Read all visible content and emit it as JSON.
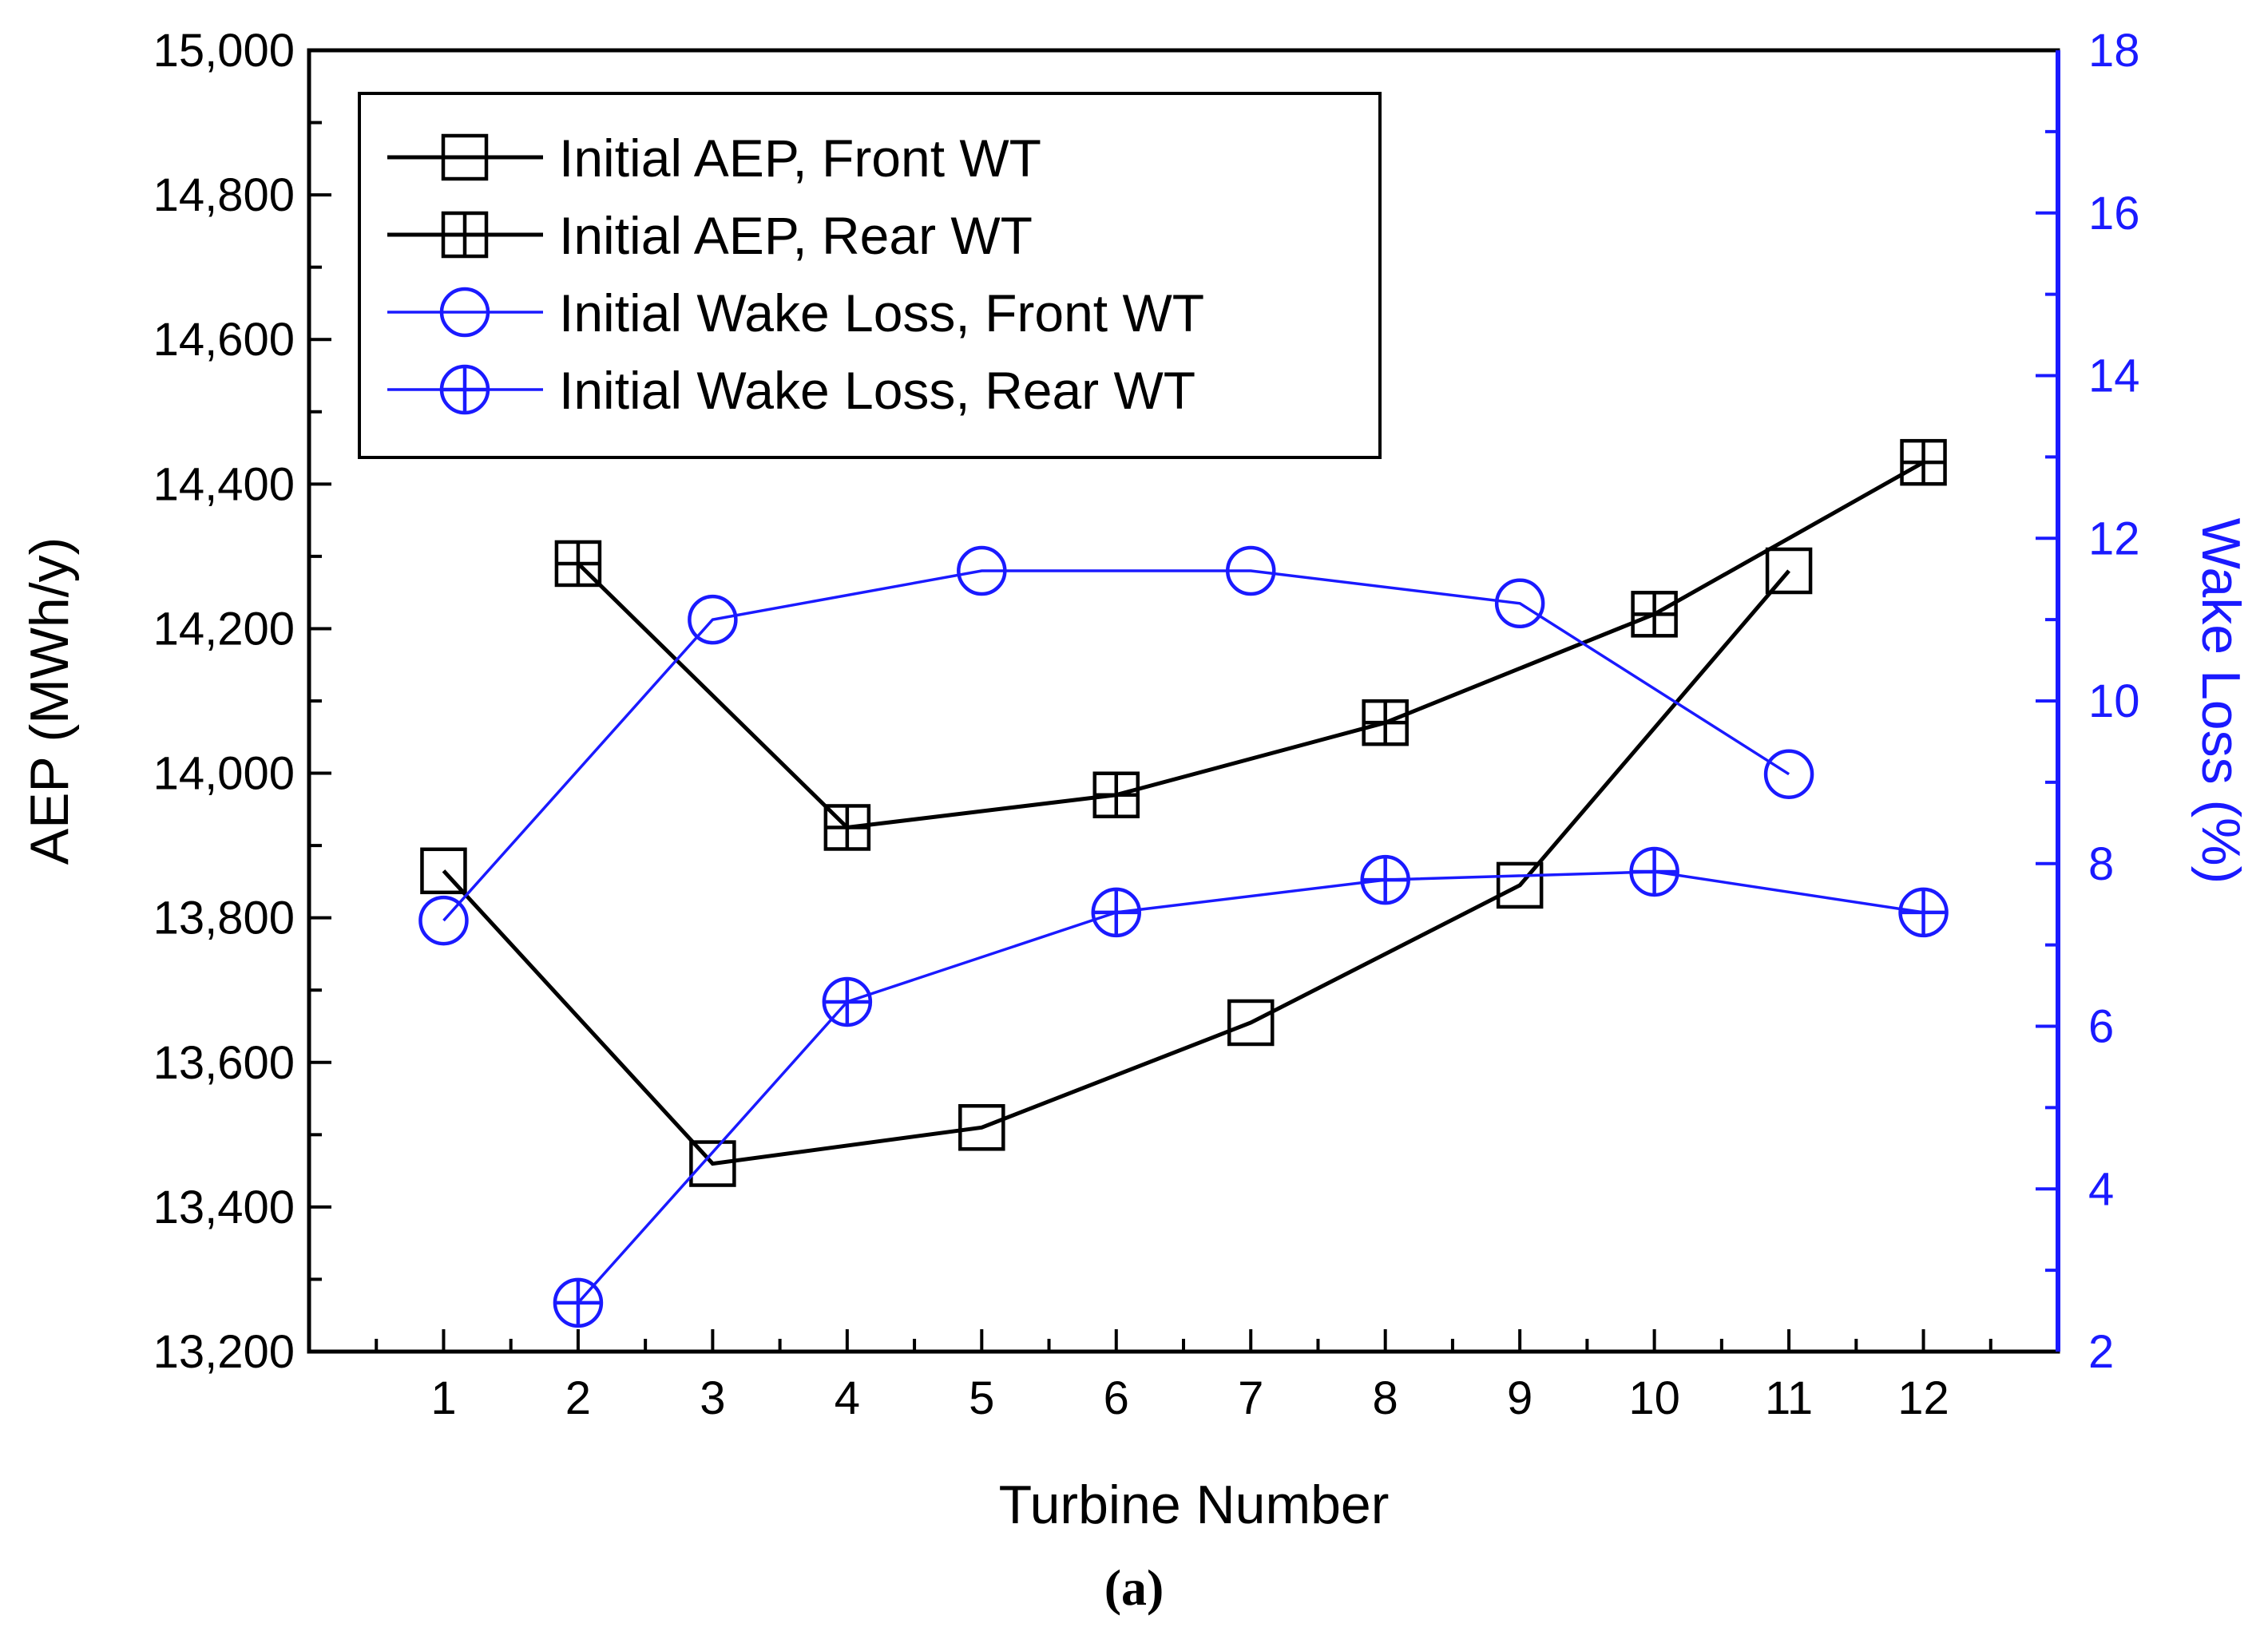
{
  "chart_data": {
    "type": "line",
    "caption": "(a)",
    "xlabel": "Turbine Number",
    "ylabel_left": "AEP (MWh/y)",
    "ylabel_right": "Wake Loss (%)",
    "x_ticks": [
      "1",
      "2",
      "3",
      "4",
      "5",
      "6",
      "7",
      "8",
      "9",
      "10",
      "11",
      "12"
    ],
    "xlim": [
      0,
      13
    ],
    "ylim_left": [
      13200,
      15000
    ],
    "ylim_right": [
      2,
      18
    ],
    "left_ticks": [
      13200,
      13400,
      13600,
      13800,
      14000,
      14200,
      14400,
      14600,
      14800,
      15000
    ],
    "left_tick_labels": [
      "13,200",
      "13,400",
      "13,600",
      "13,800",
      "14,000",
      "14,200",
      "14,400",
      "14,600",
      "14,800",
      "15,000"
    ],
    "right_ticks": [
      2,
      4,
      6,
      8,
      10,
      12,
      14,
      16,
      18
    ],
    "right_tick_labels": [
      "2",
      "4",
      "6",
      "8",
      "10",
      "12",
      "14",
      "16",
      "18"
    ],
    "colors": {
      "black": "#000000",
      "blue": "#1a1aff"
    },
    "series": [
      {
        "name": "Initial AEP, Front WT",
        "axis": "left",
        "color": "#000000",
        "marker": "square",
        "x": [
          1,
          3,
          5,
          7,
          9,
          11
        ],
        "values": [
          13865,
          13460,
          13510,
          13655,
          13845,
          14280
        ]
      },
      {
        "name": "Initial AEP, Rear WT",
        "axis": "left",
        "color": "#000000",
        "marker": "square-cross",
        "x": [
          2,
          4,
          6,
          8,
          10,
          12
        ],
        "values": [
          14290,
          13925,
          13970,
          14070,
          14220,
          14430
        ]
      },
      {
        "name": "Initial Wake Loss, Front WT",
        "axis": "right",
        "color": "#1a1aff",
        "marker": "circle",
        "x": [
          1,
          3,
          5,
          7,
          9,
          11
        ],
        "values": [
          7.3,
          11.0,
          11.6,
          11.6,
          11.2,
          9.1
        ]
      },
      {
        "name": "Initial Wake Loss, Rear WT",
        "axis": "right",
        "color": "#1a1aff",
        "marker": "circle-cross",
        "x": [
          2,
          4,
          6,
          8,
          10,
          12
        ],
        "values": [
          2.6,
          6.3,
          7.4,
          7.8,
          7.9,
          7.4
        ]
      }
    ]
  }
}
